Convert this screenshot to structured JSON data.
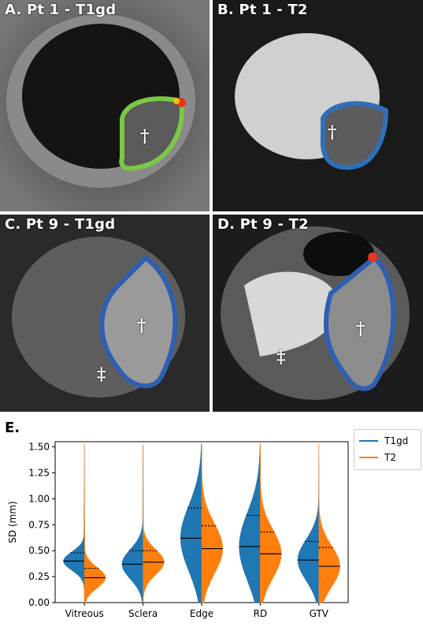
{
  "panels": [
    {
      "label": "A. Pt 1 - T1gd",
      "markers": [
        "†"
      ]
    },
    {
      "label": "B. Pt 1 - T2",
      "markers": [
        "†"
      ]
    },
    {
      "label": "C. Pt 9 - T1gd",
      "markers": [
        "†",
        "‡"
      ]
    },
    {
      "label": "D. Pt 9 - T2",
      "markers": [
        "†",
        "‡"
      ]
    }
  ],
  "panel_e_label": "E.",
  "colors": {
    "t1gd": "#1f77b4",
    "t2": "#ff7f0e"
  },
  "chart_data": {
    "type": "violin",
    "title": "",
    "xlabel": "",
    "ylabel": "SD (mm)",
    "ylim": [
      0.0,
      1.55
    ],
    "yticks": [
      "0.00",
      "0.25",
      "0.50",
      "0.75",
      "1.00",
      "1.25",
      "1.50"
    ],
    "categories": [
      "Vitreous",
      "Sclera",
      "Edge",
      "RD",
      "GTV"
    ],
    "legend_position": "outside-right",
    "series": [
      {
        "name": "T1gd",
        "side": "left",
        "median": [
          0.4,
          0.37,
          0.62,
          0.54,
          0.41
        ],
        "q3": [
          0.48,
          0.5,
          0.91,
          0.84,
          0.59
        ]
      },
      {
        "name": "T2",
        "side": "right",
        "median": [
          0.24,
          0.39,
          0.52,
          0.47,
          0.35
        ],
        "q3": [
          0.33,
          0.5,
          0.74,
          0.68,
          0.53
        ]
      }
    ],
    "max": [
      1.53,
      1.52,
      1.53,
      1.53,
      1.53
    ]
  }
}
